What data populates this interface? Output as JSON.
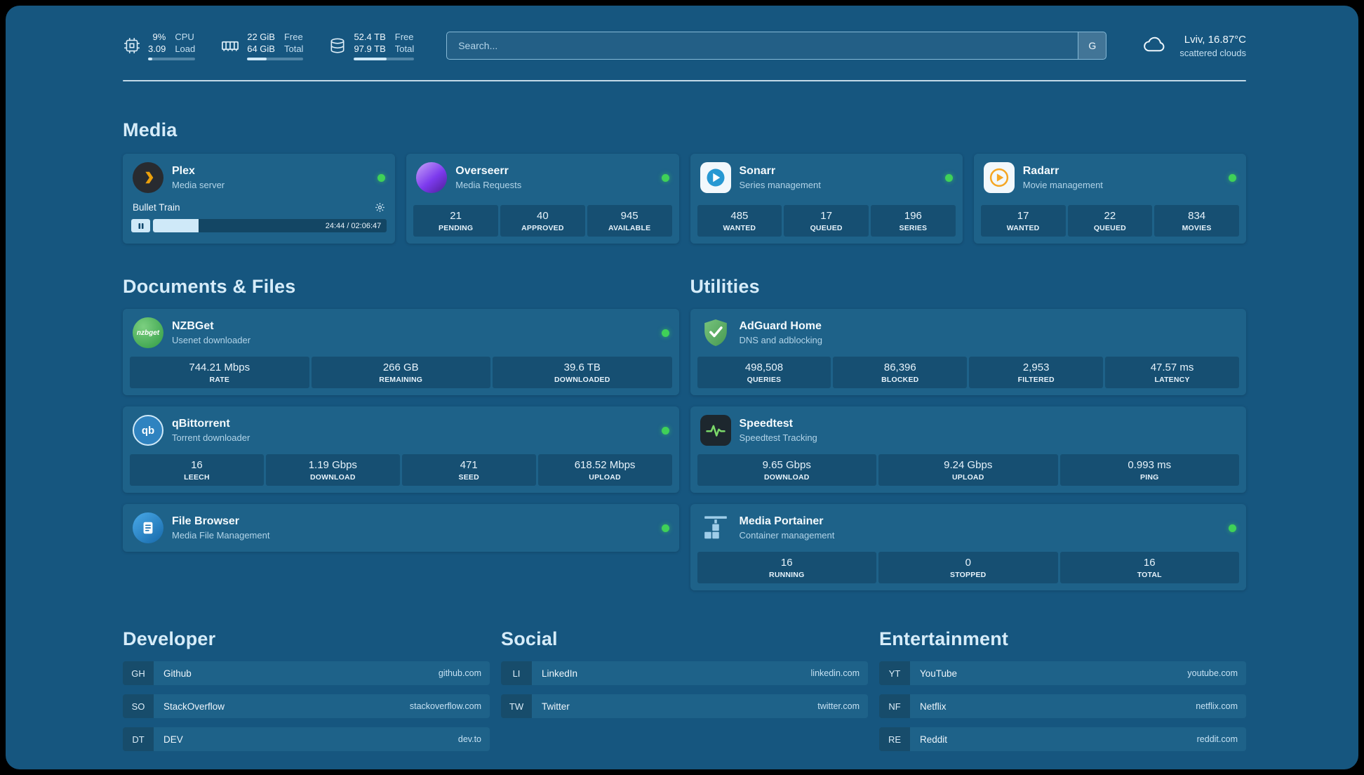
{
  "topbar": {
    "cpu": {
      "value_top": "9%",
      "value_bottom": "3.09",
      "label_top": "CPU",
      "label_bottom": "Load",
      "progress_pct": 9
    },
    "ram": {
      "value_top": "22 GiB",
      "value_bottom": "64 GiB",
      "label_top": "Free",
      "label_bottom": "Total",
      "progress_pct": 34
    },
    "disk": {
      "value_top": "52.4 TB",
      "value_bottom": "97.9 TB",
      "label_top": "Free",
      "label_bottom": "Total",
      "progress_pct": 54
    },
    "search": {
      "placeholder": "Search...",
      "engine_button": "G"
    },
    "weather": {
      "location": "Lviv, 16.87°C",
      "condition": "scattered clouds"
    }
  },
  "sections": {
    "media": "Media",
    "documents": "Documents & Files",
    "utilities": "Utilities",
    "developer": "Developer",
    "social": "Social",
    "entertainment": "Entertainment"
  },
  "media": {
    "plex": {
      "name": "Plex",
      "desc": "Media server",
      "status": "online",
      "now_playing": "Bullet Train",
      "time_display": "24:44 / 02:06:47",
      "progress_pct": 19.5
    },
    "overseerr": {
      "name": "Overseerr",
      "desc": "Media Requests",
      "status": "online",
      "stats": [
        {
          "value": "21",
          "label": "PENDING"
        },
        {
          "value": "40",
          "label": "APPROVED"
        },
        {
          "value": "945",
          "label": "AVAILABLE"
        }
      ]
    },
    "sonarr": {
      "name": "Sonarr",
      "desc": "Series management",
      "status": "online",
      "stats": [
        {
          "value": "485",
          "label": "WANTED"
        },
        {
          "value": "17",
          "label": "QUEUED"
        },
        {
          "value": "196",
          "label": "SERIES"
        }
      ]
    },
    "radarr": {
      "name": "Radarr",
      "desc": "Movie management",
      "status": "online",
      "stats": [
        {
          "value": "17",
          "label": "WANTED"
        },
        {
          "value": "22",
          "label": "QUEUED"
        },
        {
          "value": "834",
          "label": "MOVIES"
        }
      ]
    }
  },
  "documents": {
    "nzbget": {
      "name": "NZBGet",
      "desc": "Usenet downloader",
      "status": "online",
      "icon_text": "nzbget",
      "stats": [
        {
          "value": "744.21 Mbps",
          "label": "RATE"
        },
        {
          "value": "266 GB",
          "label": "REMAINING"
        },
        {
          "value": "39.6 TB",
          "label": "DOWNLOADED"
        }
      ]
    },
    "qbittorrent": {
      "name": "qBittorrent",
      "desc": "Torrent downloader",
      "status": "online",
      "icon_text": "qb",
      "stats": [
        {
          "value": "16",
          "label": "LEECH"
        },
        {
          "value": "1.19 Gbps",
          "label": "DOWNLOAD"
        },
        {
          "value": "471",
          "label": "SEED"
        },
        {
          "value": "618.52 Mbps",
          "label": "UPLOAD"
        }
      ]
    },
    "filebrowser": {
      "name": "File Browser",
      "desc": "Media File Management",
      "status": "online"
    }
  },
  "utilities": {
    "adguard": {
      "name": "AdGuard Home",
      "desc": "DNS and adblocking",
      "stats": [
        {
          "value": "498,508",
          "label": "QUERIES"
        },
        {
          "value": "86,396",
          "label": "BLOCKED"
        },
        {
          "value": "2,953",
          "label": "FILTERED"
        },
        {
          "value": "47.57 ms",
          "label": "LATENCY"
        }
      ]
    },
    "speedtest": {
      "name": "Speedtest",
      "desc": "Speedtest Tracking",
      "stats": [
        {
          "value": "9.65 Gbps",
          "label": "DOWNLOAD"
        },
        {
          "value": "9.24 Gbps",
          "label": "UPLOAD"
        },
        {
          "value": "0.993 ms",
          "label": "PING"
        }
      ]
    },
    "portainer": {
      "name": "Media Portainer",
      "desc": "Container management",
      "status": "online",
      "stats": [
        {
          "value": "16",
          "label": "RUNNING"
        },
        {
          "value": "0",
          "label": "STOPPED"
        },
        {
          "value": "16",
          "label": "TOTAL"
        }
      ]
    }
  },
  "bookmarks": {
    "developer": [
      {
        "abbr": "GH",
        "name": "Github",
        "url": "github.com"
      },
      {
        "abbr": "SO",
        "name": "StackOverflow",
        "url": "stackoverflow.com"
      },
      {
        "abbr": "DT",
        "name": "DEV",
        "url": "dev.to"
      }
    ],
    "social": [
      {
        "abbr": "LI",
        "name": "LinkedIn",
        "url": "linkedin.com"
      },
      {
        "abbr": "TW",
        "name": "Twitter",
        "url": "twitter.com"
      }
    ],
    "entertainment": [
      {
        "abbr": "YT",
        "name": "YouTube",
        "url": "youtube.com"
      },
      {
        "abbr": "NF",
        "name": "Netflix",
        "url": "netflix.com"
      },
      {
        "abbr": "RE",
        "name": "Reddit",
        "url": "reddit.com"
      }
    ]
  },
  "icons": {
    "cpu": "chip-icon",
    "ram": "memory-icon",
    "disk": "drive-icon",
    "weather": "cloud-icon",
    "plex": "plex-chevron-icon",
    "overseerr": "overseerr-icon",
    "sonarr": "sonarr-play-icon",
    "radarr": "radarr-play-icon",
    "nzbget": "nzbget-icon",
    "qbittorrent": "qb-icon",
    "filebrowser": "filebrowser-icon",
    "adguard": "shield-check-icon",
    "speedtest": "pulse-icon",
    "portainer": "crane-containers-icon",
    "status": "online-dot",
    "player": "pause-icon",
    "settings": "gear-icon"
  },
  "colors": {
    "background": "#16567f",
    "card": "#1e6289",
    "tile_overlay": "rgba(4,34,54,0.28)",
    "accent_light": "#cfe9f8",
    "status_online": "#3fd158",
    "plex_orange": "#eba00b",
    "adguard_green": "#5cab64",
    "speedtest_green": "#7bd96a",
    "radarr_orange": "#f5a623",
    "sonarr_blue": "#2798d2"
  }
}
